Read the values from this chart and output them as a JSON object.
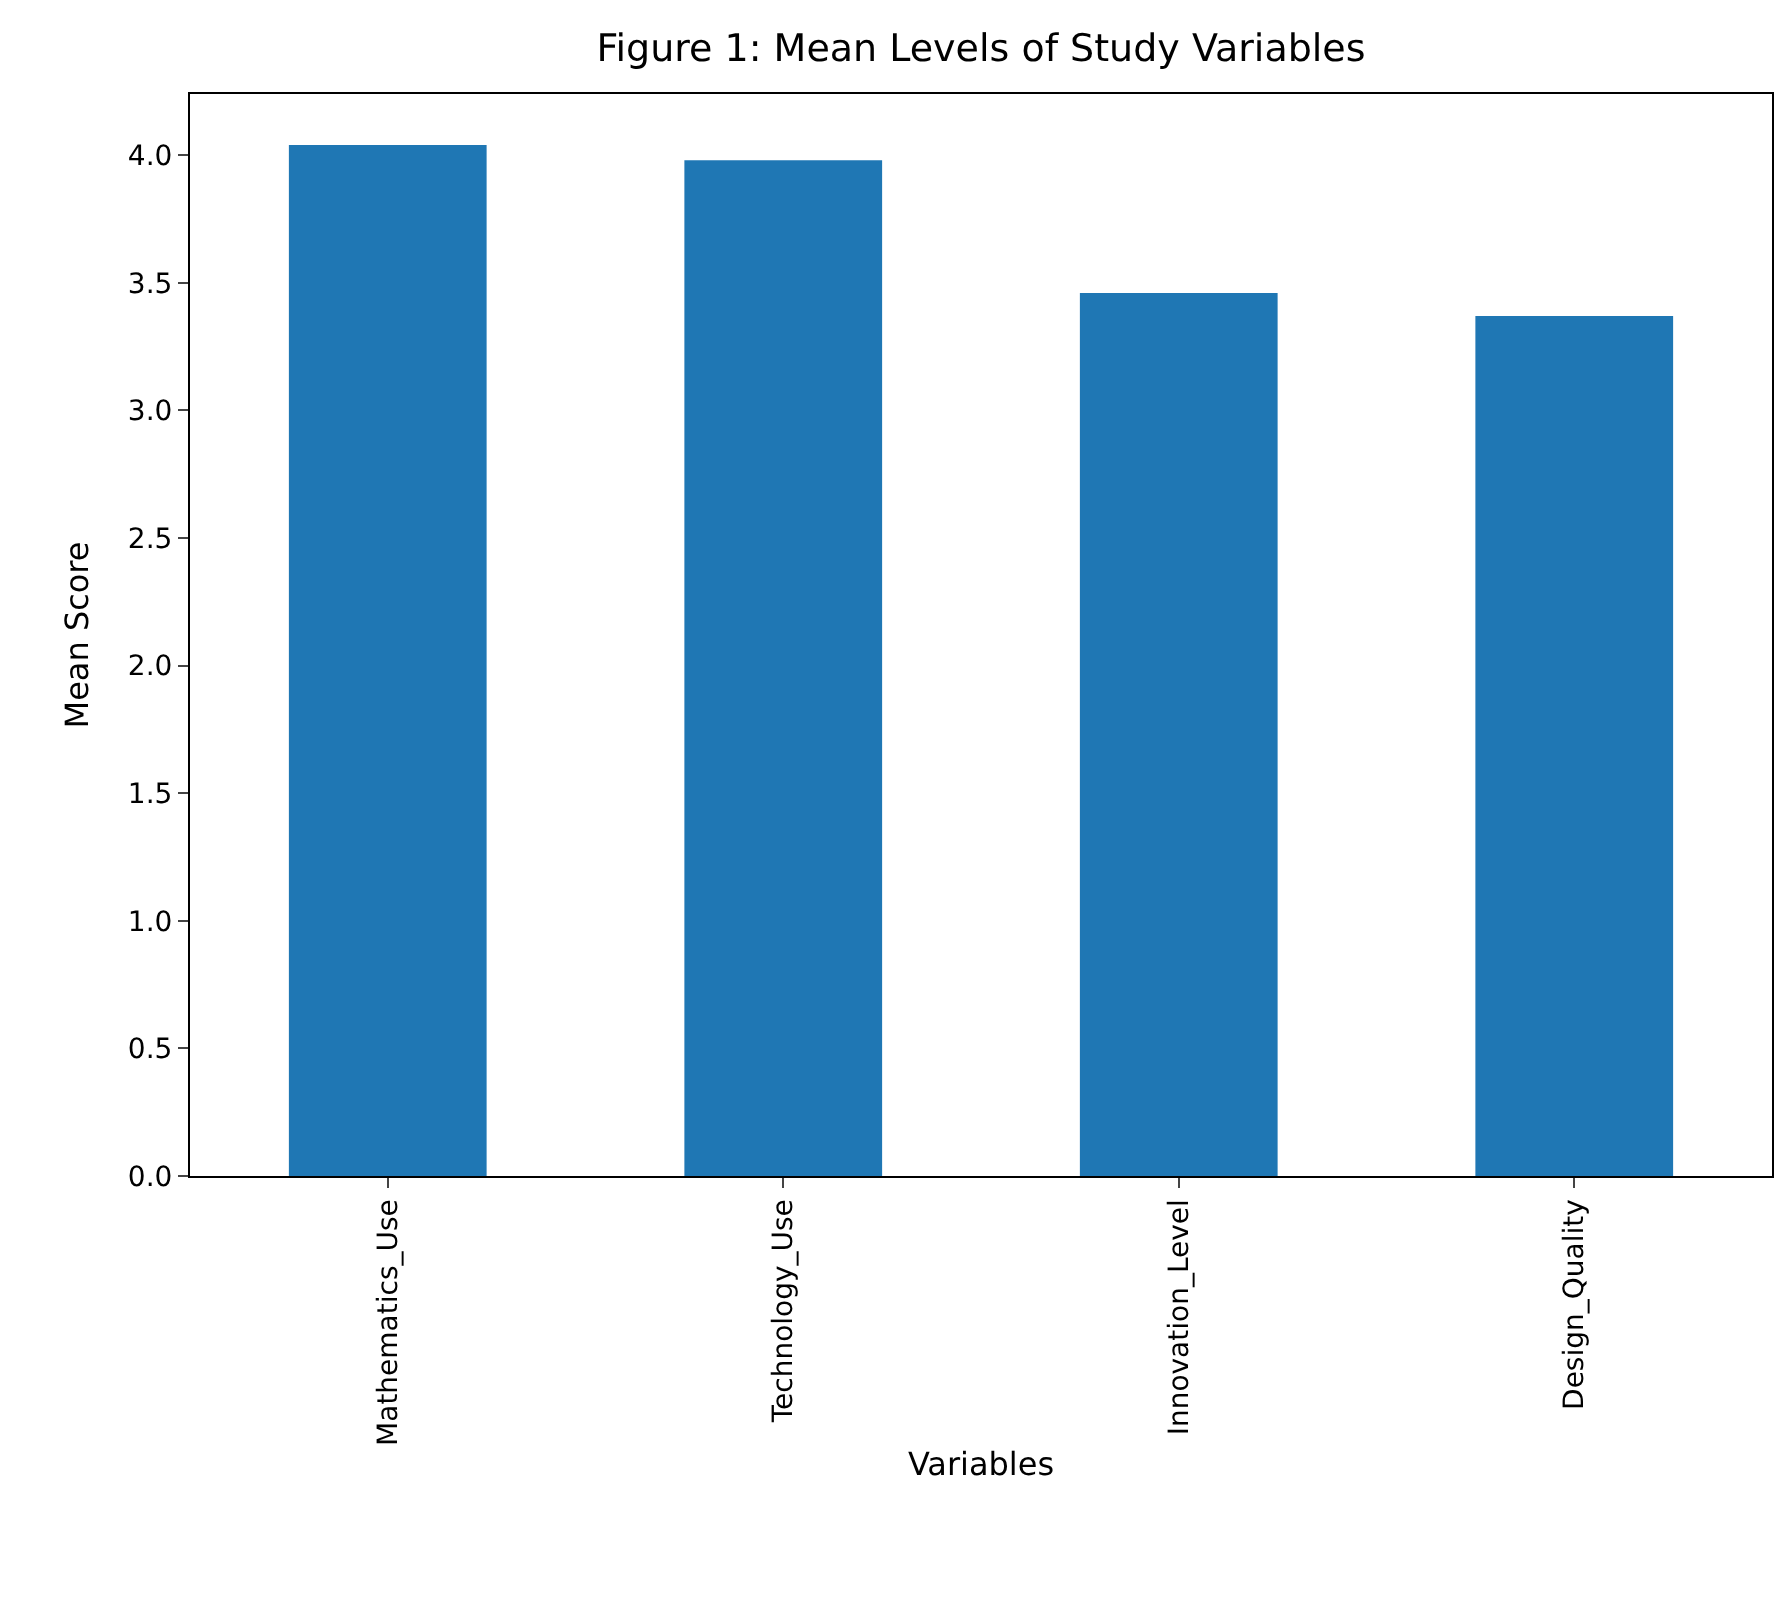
{
  "chart_data": {
    "type": "bar",
    "title": "Figure 1: Mean Levels of Study Variables",
    "xlabel": "Variables",
    "ylabel": "Mean Score",
    "categories": [
      "Mathematics_Use",
      "Technology_Use",
      "Innovation_Level",
      "Design_Quality"
    ],
    "values": [
      4.04,
      3.98,
      3.46,
      3.37
    ],
    "color": "#1f77b4",
    "ylim": [
      0,
      4.24
    ],
    "yticks": [
      {
        "value": 0,
        "label": "0.0"
      },
      0.5,
      {
        "value": 1,
        "label": "1.0"
      },
      1.5,
      {
        "value": 2,
        "label": "2.0"
      },
      2.5,
      {
        "value": 3,
        "label": "3.0"
      },
      3.5,
      {
        "value": 4,
        "label": "4.0"
      }
    ]
  }
}
